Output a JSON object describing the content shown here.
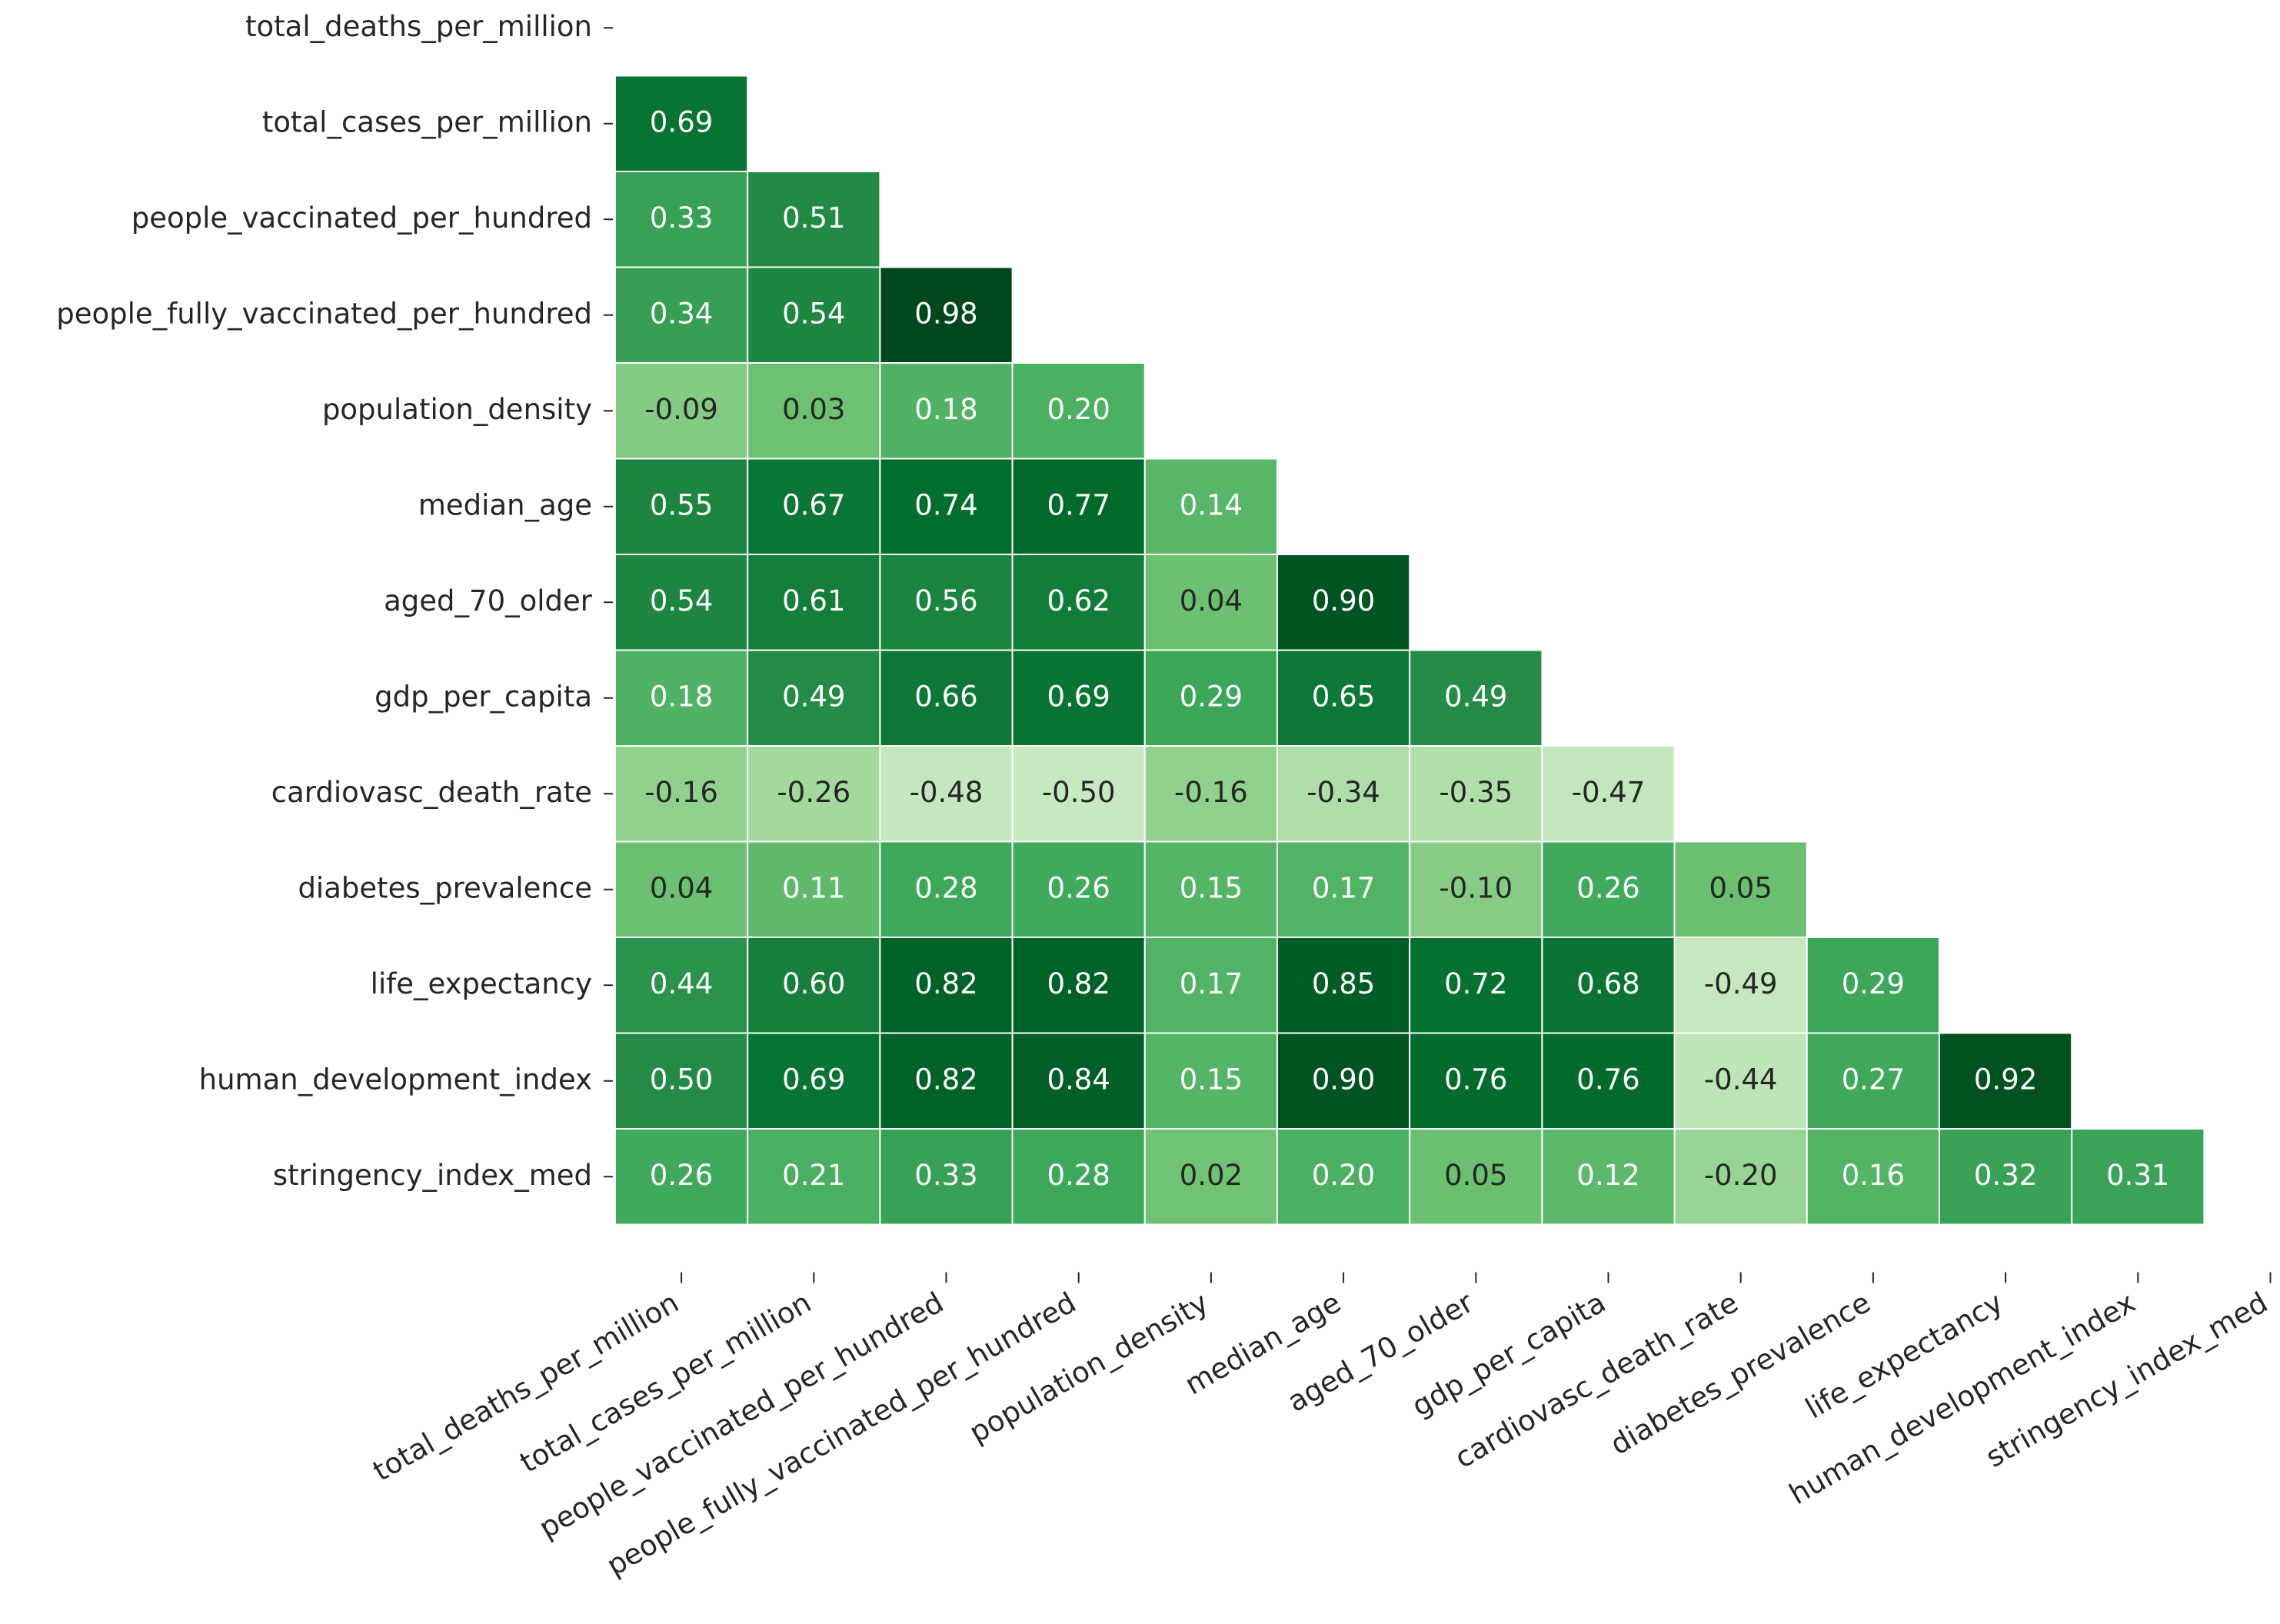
{
  "chart_data": {
    "type": "heatmap",
    "categories": [
      "total_deaths_per_million",
      "total_cases_per_million",
      "people_vaccinated_per_hundred",
      "people_fully_vaccinated_per_hundred",
      "population_density",
      "median_age",
      "aged_70_older",
      "gdp_per_capita",
      "cardiovasc_death_rate",
      "diabetes_prevalence",
      "life_expectancy",
      "human_development_index",
      "stringency_index_med"
    ],
    "values": [
      [
        null,
        null,
        null,
        null,
        null,
        null,
        null,
        null,
        null,
        null,
        null,
        null,
        null
      ],
      [
        0.69,
        null,
        null,
        null,
        null,
        null,
        null,
        null,
        null,
        null,
        null,
        null,
        null
      ],
      [
        0.33,
        0.51,
        null,
        null,
        null,
        null,
        null,
        null,
        null,
        null,
        null,
        null,
        null
      ],
      [
        0.34,
        0.54,
        0.98,
        null,
        null,
        null,
        null,
        null,
        null,
        null,
        null,
        null,
        null
      ],
      [
        -0.09,
        0.03,
        0.18,
        0.2,
        null,
        null,
        null,
        null,
        null,
        null,
        null,
        null,
        null
      ],
      [
        0.55,
        0.67,
        0.74,
        0.77,
        0.14,
        null,
        null,
        null,
        null,
        null,
        null,
        null,
        null
      ],
      [
        0.54,
        0.61,
        0.56,
        0.62,
        0.04,
        0.9,
        null,
        null,
        null,
        null,
        null,
        null,
        null
      ],
      [
        0.18,
        0.49,
        0.66,
        0.69,
        0.29,
        0.65,
        0.49,
        null,
        null,
        null,
        null,
        null,
        null
      ],
      [
        -0.16,
        -0.26,
        -0.48,
        -0.5,
        -0.16,
        -0.34,
        -0.35,
        -0.47,
        null,
        null,
        null,
        null,
        null
      ],
      [
        0.04,
        0.11,
        0.28,
        0.26,
        0.15,
        0.17,
        -0.1,
        0.26,
        0.05,
        null,
        null,
        null,
        null
      ],
      [
        0.44,
        0.6,
        0.82,
        0.82,
        0.17,
        0.85,
        0.72,
        0.68,
        -0.49,
        0.29,
        null,
        null,
        null
      ],
      [
        0.5,
        0.69,
        0.82,
        0.84,
        0.15,
        0.9,
        0.76,
        0.76,
        -0.44,
        0.27,
        0.92,
        null,
        null
      ],
      [
        0.26,
        0.21,
        0.33,
        0.28,
        0.02,
        0.2,
        0.05,
        0.12,
        -0.2,
        0.16,
        0.32,
        0.31,
        null
      ]
    ],
    "value_labels": [
      [
        null,
        null,
        null,
        null,
        null,
        null,
        null,
        null,
        null,
        null,
        null,
        null,
        null
      ],
      [
        "0.69",
        null,
        null,
        null,
        null,
        null,
        null,
        null,
        null,
        null,
        null,
        null,
        null
      ],
      [
        "0.33",
        "0.51",
        null,
        null,
        null,
        null,
        null,
        null,
        null,
        null,
        null,
        null,
        null
      ],
      [
        "0.34",
        "0.54",
        "0.98",
        null,
        null,
        null,
        null,
        null,
        null,
        null,
        null,
        null,
        null
      ],
      [
        "-0.09",
        "0.03",
        "0.18",
        "0.20",
        null,
        null,
        null,
        null,
        null,
        null,
        null,
        null,
        null
      ],
      [
        "0.55",
        "0.67",
        "0.74",
        "0.77",
        "0.14",
        null,
        null,
        null,
        null,
        null,
        null,
        null,
        null
      ],
      [
        "0.54",
        "0.61",
        "0.56",
        "0.62",
        "0.04",
        "0.90",
        null,
        null,
        null,
        null,
        null,
        null,
        null
      ],
      [
        "0.18",
        "0.49",
        "0.66",
        "0.69",
        "0.29",
        "0.65",
        "0.49",
        null,
        null,
        null,
        null,
        null,
        null
      ],
      [
        "-0.16",
        "-0.26",
        "-0.48",
        "-0.50",
        "-0.16",
        "-0.34",
        "-0.35",
        "-0.47",
        null,
        null,
        null,
        null,
        null
      ],
      [
        "0.04",
        "0.11",
        "0.28",
        "0.26",
        "0.15",
        "0.17",
        "-0.10",
        "0.26",
        "0.05",
        null,
        null,
        null,
        null
      ],
      [
        "0.44",
        "0.60",
        "0.82",
        "0.82",
        "0.17",
        "0.85",
        "0.72",
        "0.68",
        "-0.49",
        "0.29",
        null,
        null,
        null
      ],
      [
        "0.50",
        "0.69",
        "0.82",
        "0.84",
        "0.15",
        "0.90",
        "0.76",
        "0.76",
        "-0.44",
        "0.27",
        "0.92",
        null,
        null
      ],
      [
        "0.26",
        "0.21",
        "0.33",
        "0.28",
        "0.02",
        "0.20",
        "0.05",
        "0.12",
        "-0.20",
        "0.16",
        "0.32",
        "0.31",
        null
      ]
    ],
    "colormap": [
      "#f7fcf5",
      "#e5f5e0",
      "#c7e9c0",
      "#a1d99b",
      "#74c476",
      "#41ab5d",
      "#238b45",
      "#006d2c",
      "#00441b"
    ],
    "vlim": [
      -1,
      1
    ]
  }
}
